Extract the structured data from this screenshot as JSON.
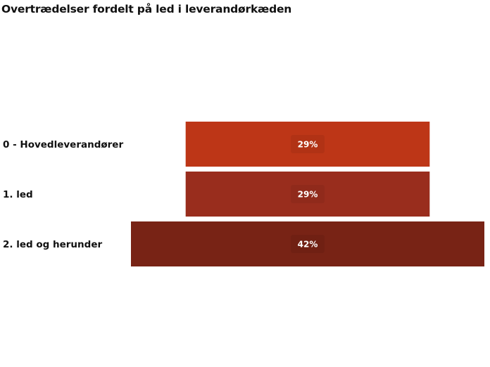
{
  "chart_data": {
    "type": "funnel",
    "title": "Overtrædelser fordelt på led i leverandørkæden",
    "categories": [
      "0 - Hovedleverandører",
      "1. led",
      "2. led og herunder"
    ],
    "values": [
      29,
      29,
      42
    ],
    "unit": "%",
    "data_labels": [
      "29%",
      "29%",
      "42%"
    ],
    "colors": [
      "#BD3617",
      "#992D1D",
      "#782315"
    ]
  }
}
